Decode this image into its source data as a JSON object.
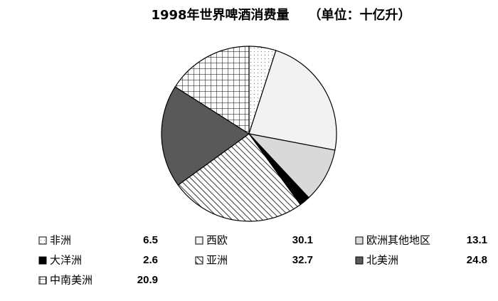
{
  "chart_data": {
    "type": "pie",
    "title": "1998年世界啤酒消费量　　（单位：十亿升）",
    "categories": [
      "非洲",
      "西欧",
      "欧洲其他地区",
      "大洋洲",
      "亚洲",
      "北美洲",
      "中南美洲"
    ],
    "values": [
      6.5,
      30.1,
      13.1,
      2.6,
      32.7,
      24.8,
      20.9
    ],
    "colors": [
      "#ffffff",
      "#f2f2f2",
      "#d9d9d9",
      "#000000",
      "#ffffff",
      "#595959",
      "#ffffff"
    ],
    "patterns": [
      "dots",
      "none",
      "none",
      "none",
      "diagonal",
      "none",
      "grid"
    ]
  }
}
